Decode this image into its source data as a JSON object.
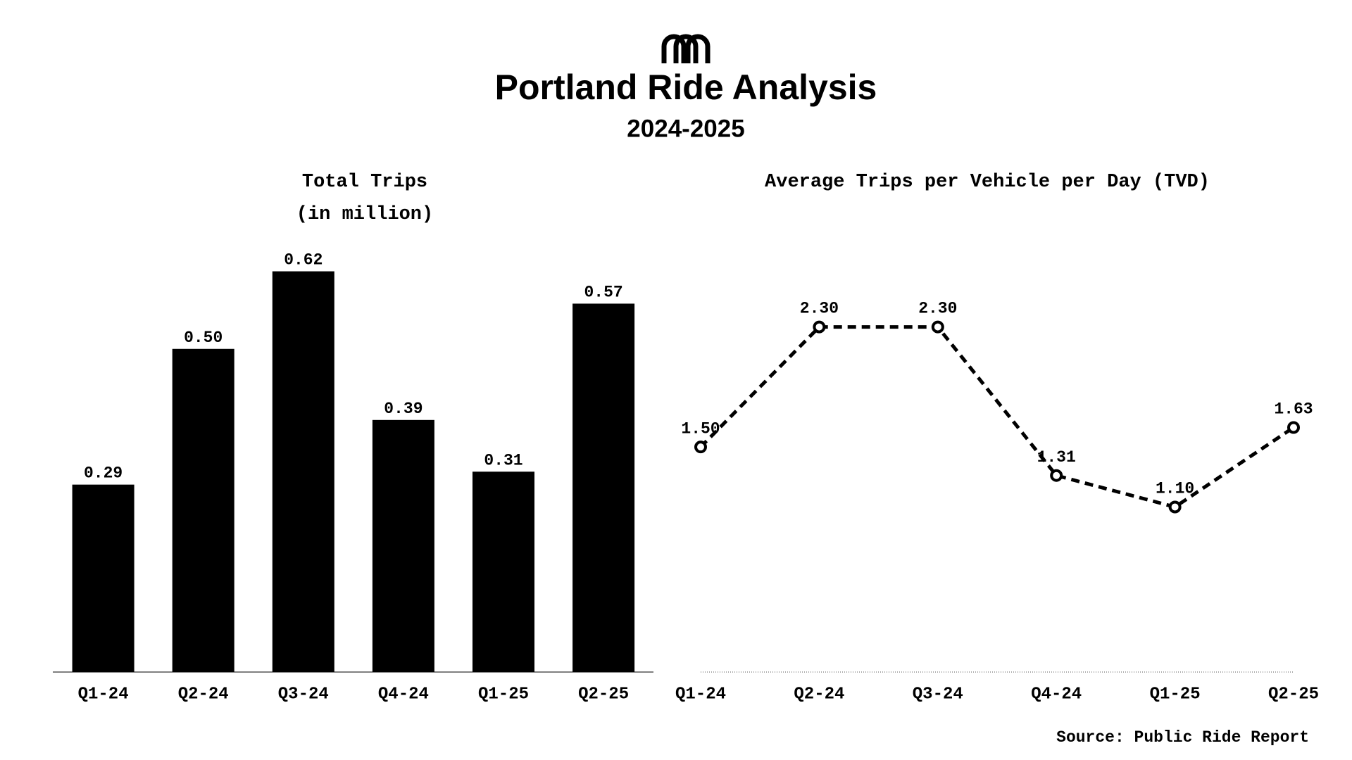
{
  "title": "Portland Ride Analysis",
  "subtitle": "2024-2025",
  "source": "Source: Public Ride Report",
  "chart_data": [
    {
      "type": "bar",
      "title": "Total Trips",
      "subtitle": "(in million)",
      "categories": [
        "Q1-24",
        "Q2-24",
        "Q3-24",
        "Q4-24",
        "Q1-25",
        "Q2-25"
      ],
      "values": [
        0.29,
        0.5,
        0.62,
        0.39,
        0.31,
        0.57
      ],
      "value_labels": [
        "0.29",
        "0.50",
        "0.62",
        "0.39",
        "0.31",
        "0.57"
      ],
      "color": "#000000",
      "ylim": [
        0,
        0.65
      ],
      "grid": false
    },
    {
      "type": "line",
      "title": "Average Trips per Vehicle per Day (TVD)",
      "categories": [
        "Q1-24",
        "Q2-24",
        "Q3-24",
        "Q4-24",
        "Q1-25",
        "Q2-25"
      ],
      "values": [
        1.5,
        2.3,
        2.3,
        1.31,
        1.1,
        1.63
      ],
      "value_labels": [
        "1.50",
        "2.30",
        "2.30",
        "1.31",
        "1.10",
        "1.63"
      ],
      "color": "#000000",
      "ylim": [
        0,
        2.8
      ],
      "grid": false
    }
  ]
}
